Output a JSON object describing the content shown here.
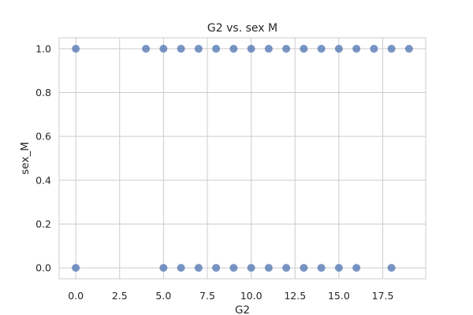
{
  "chart_data": {
    "type": "scatter",
    "title": "G2 vs. sex M",
    "xlabel": "G2",
    "ylabel": "sex_M",
    "xlim": [
      -0.95,
      19.95
    ],
    "ylim": [
      -0.05,
      1.05
    ],
    "xticks": [
      0.0,
      2.5,
      5.0,
      7.5,
      10.0,
      12.5,
      15.0,
      17.5
    ],
    "xtick_labels": [
      "0.0",
      "2.5",
      "5.0",
      "7.5",
      "10.0",
      "12.5",
      "15.0",
      "17.5"
    ],
    "yticks": [
      0.0,
      0.2,
      0.4,
      0.6,
      0.8,
      1.0
    ],
    "ytick_labels": [
      "0.0",
      "0.2",
      "0.4",
      "0.6",
      "0.8",
      "1.0"
    ],
    "grid": true,
    "marker_color": "#4c72b0",
    "points": [
      {
        "x": 0,
        "y": 1
      },
      {
        "x": 4,
        "y": 1
      },
      {
        "x": 5,
        "y": 1
      },
      {
        "x": 6,
        "y": 1
      },
      {
        "x": 7,
        "y": 1
      },
      {
        "x": 8,
        "y": 1
      },
      {
        "x": 9,
        "y": 1
      },
      {
        "x": 10,
        "y": 1
      },
      {
        "x": 11,
        "y": 1
      },
      {
        "x": 12,
        "y": 1
      },
      {
        "x": 13,
        "y": 1
      },
      {
        "x": 14,
        "y": 1
      },
      {
        "x": 15,
        "y": 1
      },
      {
        "x": 16,
        "y": 1
      },
      {
        "x": 17,
        "y": 1
      },
      {
        "x": 18,
        "y": 1
      },
      {
        "x": 19,
        "y": 1
      },
      {
        "x": 0,
        "y": 0
      },
      {
        "x": 5,
        "y": 0
      },
      {
        "x": 6,
        "y": 0
      },
      {
        "x": 7,
        "y": 0
      },
      {
        "x": 8,
        "y": 0
      },
      {
        "x": 9,
        "y": 0
      },
      {
        "x": 10,
        "y": 0
      },
      {
        "x": 11,
        "y": 0
      },
      {
        "x": 12,
        "y": 0
      },
      {
        "x": 13,
        "y": 0
      },
      {
        "x": 14,
        "y": 0
      },
      {
        "x": 15,
        "y": 0
      },
      {
        "x": 16,
        "y": 0
      },
      {
        "x": 18,
        "y": 0
      }
    ]
  }
}
